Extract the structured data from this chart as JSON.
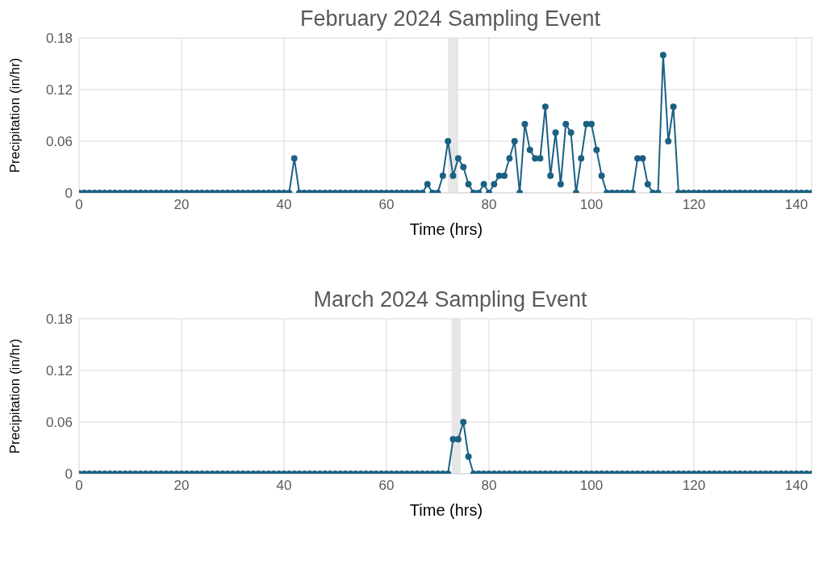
{
  "chart_data": [
    {
      "type": "line",
      "title": "February 2024 Sampling Event",
      "xlabel": "Time (hrs)",
      "ylabel": "Precipitation (in/hr)",
      "xlim": [
        0,
        143
      ],
      "xticks": [
        0,
        20,
        40,
        60,
        80,
        100,
        120,
        140
      ],
      "ylim": [
        0,
        0.18
      ],
      "yticks": [
        0,
        0.06,
        0.12,
        0.18
      ],
      "grid": true,
      "marker": "circle",
      "line_style": "solid",
      "bands": [
        {
          "axis": "x",
          "from": 72,
          "to": 74,
          "color": "#e6e6e6"
        }
      ],
      "x": [
        0,
        1,
        2,
        3,
        4,
        5,
        6,
        7,
        8,
        9,
        10,
        11,
        12,
        13,
        14,
        15,
        16,
        17,
        18,
        19,
        20,
        21,
        22,
        23,
        24,
        25,
        26,
        27,
        28,
        29,
        30,
        31,
        32,
        33,
        34,
        35,
        36,
        37,
        38,
        39,
        40,
        41,
        42,
        43,
        44,
        45,
        46,
        47,
        48,
        49,
        50,
        51,
        52,
        53,
        54,
        55,
        56,
        57,
        58,
        59,
        60,
        61,
        62,
        63,
        64,
        65,
        66,
        67,
        68,
        69,
        70,
        71,
        72,
        73,
        74,
        75,
        76,
        77,
        78,
        79,
        80,
        81,
        82,
        83,
        84,
        85,
        86,
        87,
        88,
        89,
        90,
        91,
        92,
        93,
        94,
        95,
        96,
        97,
        98,
        99,
        100,
        101,
        102,
        103,
        104,
        105,
        106,
        107,
        108,
        109,
        110,
        111,
        112,
        113,
        114,
        115,
        116,
        117,
        118,
        119,
        120,
        121,
        122,
        123,
        124,
        125,
        126,
        127,
        128,
        129,
        130,
        131,
        132,
        133,
        134,
        135,
        136,
        137,
        138,
        139,
        140,
        141,
        142,
        143
      ],
      "series": [
        {
          "color": "#1b6184",
          "values": [
            0,
            0,
            0,
            0,
            0,
            0,
            0,
            0,
            0,
            0,
            0,
            0,
            0,
            0,
            0,
            0,
            0,
            0,
            0,
            0,
            0,
            0,
            0,
            0,
            0,
            0,
            0,
            0,
            0,
            0,
            0,
            0,
            0,
            0,
            0,
            0,
            0,
            0,
            0,
            0,
            0,
            0,
            0.04,
            0,
            0,
            0,
            0,
            0,
            0,
            0,
            0,
            0,
            0,
            0,
            0,
            0,
            0,
            0,
            0,
            0,
            0,
            0,
            0,
            0,
            0,
            0,
            0,
            0,
            0.01,
            0,
            0,
            0.02,
            0.06,
            0.02,
            0.04,
            0.03,
            0.01,
            0,
            0,
            0.01,
            0,
            0.01,
            0.02,
            0.02,
            0.04,
            0.06,
            0,
            0.08,
            0.05,
            0.04,
            0.04,
            0.1,
            0.02,
            0.07,
            0.01,
            0.08,
            0.07,
            0,
            0.04,
            0.08,
            0.08,
            0.05,
            0.02,
            0,
            0,
            0,
            0,
            0,
            0,
            0.04,
            0.04,
            0.01,
            0,
            0,
            0.16,
            0.06,
            0.1,
            0,
            0,
            0,
            0,
            0,
            0,
            0,
            0,
            0,
            0,
            0,
            0,
            0,
            0,
            0,
            0,
            0,
            0,
            0,
            0,
            0,
            0,
            0,
            0,
            0,
            0,
            0
          ]
        }
      ]
    },
    {
      "type": "line",
      "title": "March 2024 Sampling Event",
      "xlabel": "Time (hrs)",
      "ylabel": "Precipitation (in/hr)",
      "xlim": [
        0,
        143
      ],
      "xticks": [
        0,
        20,
        40,
        60,
        80,
        100,
        120,
        140
      ],
      "ylim": [
        0,
        0.18
      ],
      "yticks": [
        0,
        0.06,
        0.12,
        0.18
      ],
      "grid": true,
      "marker": "circle",
      "line_style": "solid",
      "bands": [
        {
          "axis": "x",
          "from": 72.7,
          "to": 74.5,
          "color": "#e6e6e6"
        }
      ],
      "x": [
        0,
        1,
        2,
        3,
        4,
        5,
        6,
        7,
        8,
        9,
        10,
        11,
        12,
        13,
        14,
        15,
        16,
        17,
        18,
        19,
        20,
        21,
        22,
        23,
        24,
        25,
        26,
        27,
        28,
        29,
        30,
        31,
        32,
        33,
        34,
        35,
        36,
        37,
        38,
        39,
        40,
        41,
        42,
        43,
        44,
        45,
        46,
        47,
        48,
        49,
        50,
        51,
        52,
        53,
        54,
        55,
        56,
        57,
        58,
        59,
        60,
        61,
        62,
        63,
        64,
        65,
        66,
        67,
        68,
        69,
        70,
        71,
        72,
        73,
        74,
        75,
        76,
        77,
        78,
        79,
        80,
        81,
        82,
        83,
        84,
        85,
        86,
        87,
        88,
        89,
        90,
        91,
        92,
        93,
        94,
        95,
        96,
        97,
        98,
        99,
        100,
        101,
        102,
        103,
        104,
        105,
        106,
        107,
        108,
        109,
        110,
        111,
        112,
        113,
        114,
        115,
        116,
        117,
        118,
        119,
        120,
        121,
        122,
        123,
        124,
        125,
        126,
        127,
        128,
        129,
        130,
        131,
        132,
        133,
        134,
        135,
        136,
        137,
        138,
        139,
        140,
        141,
        142,
        143
      ],
      "series": [
        {
          "color": "#1b6184",
          "values": [
            0,
            0,
            0,
            0,
            0,
            0,
            0,
            0,
            0,
            0,
            0,
            0,
            0,
            0,
            0,
            0,
            0,
            0,
            0,
            0,
            0,
            0,
            0,
            0,
            0,
            0,
            0,
            0,
            0,
            0,
            0,
            0,
            0,
            0,
            0,
            0,
            0,
            0,
            0,
            0,
            0,
            0,
            0,
            0,
            0,
            0,
            0,
            0,
            0,
            0,
            0,
            0,
            0,
            0,
            0,
            0,
            0,
            0,
            0,
            0,
            0,
            0,
            0,
            0,
            0,
            0,
            0,
            0,
            0,
            0,
            0,
            0,
            0,
            0.04,
            0.04,
            0.06,
            0.02,
            0,
            0,
            0,
            0,
            0,
            0,
            0,
            0,
            0,
            0,
            0,
            0,
            0,
            0,
            0,
            0,
            0,
            0,
            0,
            0,
            0,
            0,
            0,
            0,
            0,
            0,
            0,
            0,
            0,
            0,
            0,
            0,
            0,
            0,
            0,
            0,
            0,
            0,
            0,
            0,
            0,
            0,
            0,
            0,
            0,
            0,
            0,
            0,
            0,
            0,
            0,
            0,
            0,
            0,
            0,
            0,
            0,
            0,
            0,
            0,
            0,
            0,
            0,
            0,
            0,
            0,
            0
          ]
        }
      ]
    }
  ]
}
